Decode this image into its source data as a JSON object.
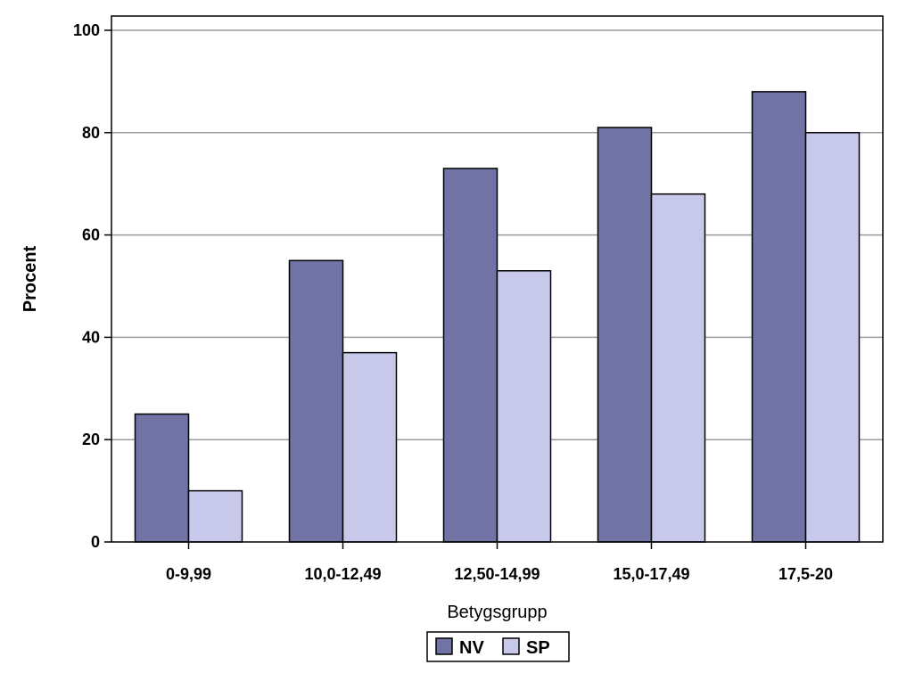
{
  "chart_data": {
    "type": "bar",
    "categories": [
      "0-9,99",
      "10,0-12,49",
      "12,50-14,99",
      "15,0-17,49",
      "17,5-20"
    ],
    "series": [
      {
        "name": "NV",
        "color": "#7073a4",
        "values": [
          25,
          55,
          73,
          81,
          88
        ]
      },
      {
        "name": "SP",
        "color": "#c8c8ea",
        "values": [
          10,
          37,
          53,
          68,
          80
        ]
      }
    ],
    "xlabel": "Betygsgrupp",
    "ylabel": "Procent",
    "ylim": [
      0,
      100
    ],
    "yticks": [
      "0",
      "20",
      "40",
      "60",
      "80",
      "100"
    ],
    "grid": true,
    "legend_position": "bottom-center"
  }
}
